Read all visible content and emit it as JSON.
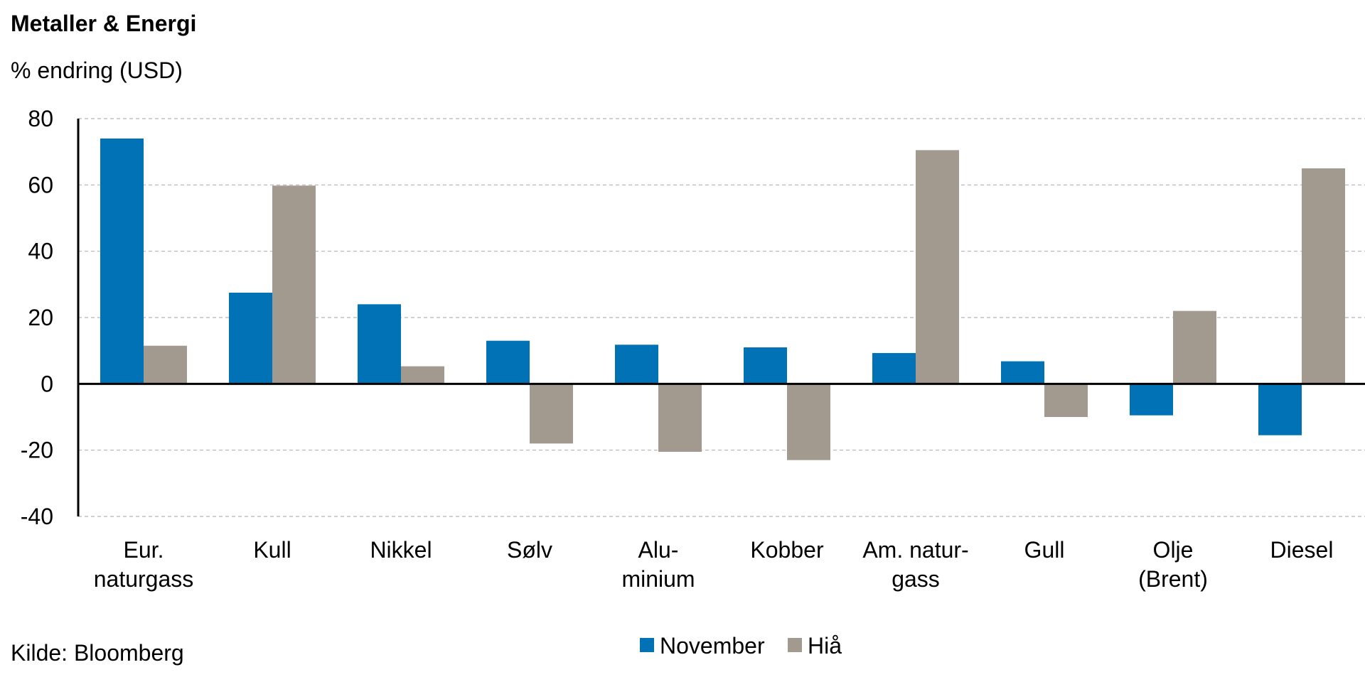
{
  "chart_data": {
    "type": "bar",
    "title": "Metaller & Energi",
    "subtitle": "% endring (USD)",
    "categories": [
      [
        "Eur.",
        "naturgass"
      ],
      [
        "Kull"
      ],
      [
        "Nikkel"
      ],
      [
        "Sølv"
      ],
      [
        "Alu-",
        "minium"
      ],
      [
        "Kobber"
      ],
      [
        "Am. natur-",
        "gass"
      ],
      [
        "Gull"
      ],
      [
        "Olje",
        "(Brent)"
      ],
      [
        "Diesel"
      ]
    ],
    "series": [
      {
        "name": "November",
        "color": "#0072B5",
        "values": [
          74,
          27.5,
          24,
          13,
          11.8,
          11,
          9.3,
          6.8,
          -9.5,
          -15.5
        ]
      },
      {
        "name": "Hiå",
        "color": "#A39A8F",
        "values": [
          11.5,
          59.8,
          5.3,
          -18,
          -20.5,
          -23,
          70.5,
          -10,
          22,
          65
        ]
      }
    ],
    "yticks": [
      80,
      60,
      40,
      20,
      0,
      -20,
      -40
    ],
    "ylim": [
      -40,
      80
    ],
    "grid": true,
    "legend": "bottom-center",
    "source": "Kilde: Bloomberg"
  }
}
